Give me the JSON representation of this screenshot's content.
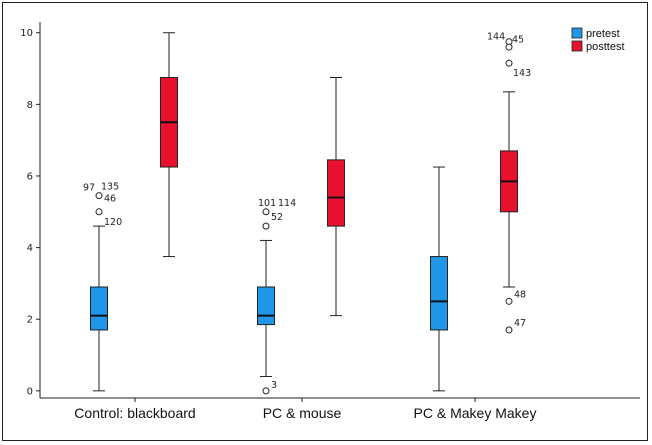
{
  "chart_data": {
    "type": "boxplot",
    "categories": [
      "Control: blackboard",
      "PC & mouse",
      "PC & Makey Makey"
    ],
    "yticks": [
      0,
      2,
      4,
      6,
      8,
      10
    ],
    "ylim": [
      -0.2,
      10.3
    ],
    "grid": false,
    "legend_position": "top-right",
    "series": [
      {
        "name": "pretest",
        "color": "#2196e8",
        "boxes": [
          {
            "min": 0,
            "q1": 1.7,
            "median": 2.1,
            "q3": 2.9,
            "max": 4.6,
            "outliers": [
              {
                "y": 5.45,
                "label": "97"
              },
              {
                "y": 5.45,
                "label": "135"
              },
              {
                "y": 5.45,
                "label": "46"
              },
              {
                "y": 5.0,
                "label": "120"
              }
            ]
          },
          {
            "min": 0.4,
            "q1": 1.85,
            "median": 2.1,
            "q3": 2.9,
            "max": 4.2,
            "outliers": [
              {
                "y": 5.0,
                "label": "101"
              },
              {
                "y": 5.0,
                "label": "114"
              },
              {
                "y": 5.0,
                "label": "52"
              },
              {
                "y": 4.6,
                "label": ""
              },
              {
                "y": 0.0,
                "label": "3"
              }
            ]
          },
          {
            "min": 0,
            "q1": 1.7,
            "median": 2.5,
            "q3": 3.75,
            "max": 6.25,
            "outliers": []
          }
        ]
      },
      {
        "name": "posttest",
        "color": "#e8112d",
        "boxes": [
          {
            "min": 3.75,
            "q1": 6.25,
            "median": 7.5,
            "q3": 8.75,
            "max": 10,
            "outliers": []
          },
          {
            "min": 2.1,
            "q1": 4.6,
            "median": 5.4,
            "q3": 6.45,
            "max": 8.75,
            "outliers": []
          },
          {
            "min": 2.9,
            "q1": 5.0,
            "median": 5.85,
            "q3": 6.7,
            "max": 8.35,
            "outliers": [
              {
                "y": 9.75,
                "label": "144"
              },
              {
                "y": 9.75,
                "label": "45"
              },
              {
                "y": 9.6,
                "label": ""
              },
              {
                "y": 9.15,
                "label": "143"
              },
              {
                "y": 2.5,
                "label": "48"
              },
              {
                "y": 1.7,
                "label": "47"
              }
            ]
          }
        ]
      }
    ]
  }
}
